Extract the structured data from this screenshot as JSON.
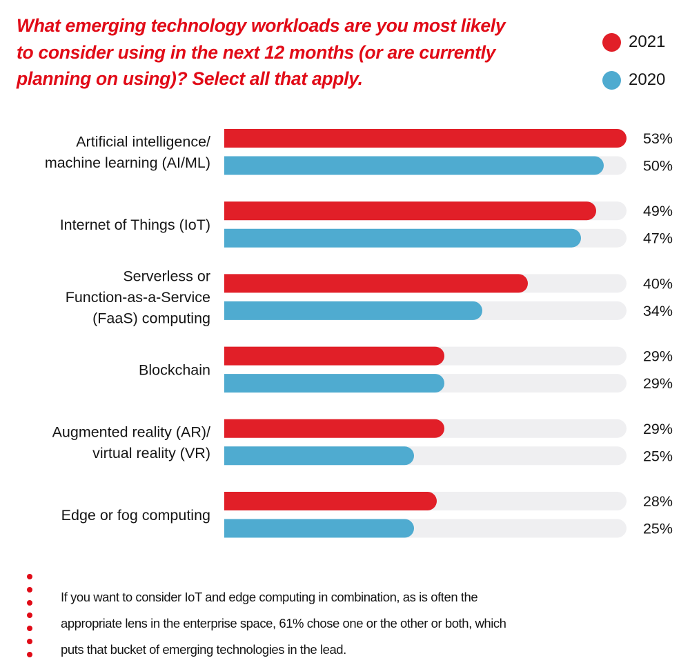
{
  "colors": {
    "title": "#e10b17",
    "series_2021": "#e11f28",
    "series_2020": "#4fabd0",
    "track": "#efeff1",
    "text": "#151515",
    "note_dots": "#e00b17"
  },
  "title_lines": [
    "What emerging technology workloads are you most likely",
    "to consider using in the next 12 months (or are currently",
    "planning on using)? Select all that apply."
  ],
  "legend": [
    {
      "label": "2021",
      "series": "2021"
    },
    {
      "label": "2020",
      "series": "2020"
    }
  ],
  "chart_data": {
    "type": "bar",
    "orientation": "horizontal",
    "title": "What emerging technology workloads are you most likely to consider using in the next 12 months (or are currently planning on using)? Select all that apply.",
    "xlabel": "",
    "ylabel": "",
    "unit": "%",
    "xlim": [
      0,
      53
    ],
    "grid": false,
    "legend_position": "top-right",
    "categories": [
      {
        "label": [
          "Artificial intelligence/",
          "machine learning (AI/ML)"
        ]
      },
      {
        "label": [
          "Internet of Things (IoT)"
        ]
      },
      {
        "label": [
          "Serverless or",
          "Function-as-a-Service",
          "(FaaS) computing"
        ]
      },
      {
        "label": [
          "Blockchain"
        ]
      },
      {
        "label": [
          "Augmented reality (AR)/",
          "virtual reality (VR)"
        ]
      },
      {
        "label": [
          "Edge or fog computing"
        ]
      }
    ],
    "series": [
      {
        "name": "2021",
        "values": [
          53,
          49,
          40,
          29,
          29,
          28
        ],
        "value_labels": [
          "53%",
          "49%",
          "40%",
          "29%",
          "29%",
          "28%"
        ]
      },
      {
        "name": "2020",
        "values": [
          50,
          47,
          34,
          29,
          25,
          25
        ],
        "value_labels": [
          "50%",
          "47%",
          "34%",
          "29%",
          "25%",
          "25%"
        ]
      }
    ]
  },
  "note": {
    "lines": [
      "If you want to consider IoT and edge computing in combination, as is often the",
      "appropriate lens in the enterprise space, 61% chose one or the other or both, which",
      "puts that bucket of emerging technologies in the lead."
    ],
    "dot_count": 7
  }
}
